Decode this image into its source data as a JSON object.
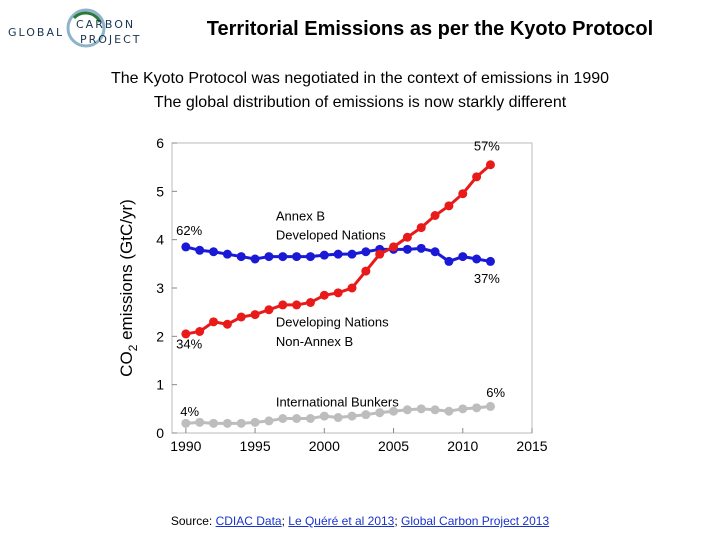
{
  "header": {
    "logo": {
      "line1": "GLOBAL",
      "line2": "CARBON",
      "line3": "PROJECT"
    },
    "title": "Territorial Emissions as per the Kyoto Protocol",
    "subtitle_1": "The Kyoto Protocol was negotiated in the context of emissions in 1990",
    "subtitle_2": "The global distribution of emissions is now starkly different"
  },
  "footer": {
    "prefix": "Source: ",
    "link1": "CDIAC Data",
    "sep1": "; ",
    "link2": "Le Quéré et al 2013",
    "sep2": "; ",
    "link3": "Global Carbon Project 2013"
  },
  "chart_data": {
    "type": "line",
    "title": "",
    "xlabel": "",
    "ylabel": "CO2 emissions (GtC/yr)",
    "xlim": [
      1989,
      2015
    ],
    "ylim": [
      0,
      6
    ],
    "xticks": [
      1990,
      1995,
      2000,
      2005,
      2010,
      2015
    ],
    "yticks": [
      0,
      1,
      2,
      3,
      4,
      5,
      6
    ],
    "grid": false,
    "x": [
      1990,
      1991,
      1992,
      1993,
      1994,
      1995,
      1996,
      1997,
      1998,
      1999,
      2000,
      2001,
      2002,
      2003,
      2004,
      2005,
      2006,
      2007,
      2008,
      2009,
      2010,
      2011,
      2012
    ],
    "series": [
      {
        "name": "Annex B Developed Nations",
        "color": "#1a1ad6",
        "values": [
          3.85,
          3.78,
          3.75,
          3.7,
          3.65,
          3.6,
          3.65,
          3.65,
          3.65,
          3.65,
          3.68,
          3.7,
          3.7,
          3.75,
          3.8,
          3.8,
          3.8,
          3.82,
          3.75,
          3.55,
          3.65,
          3.6,
          3.55
        ]
      },
      {
        "name": "Developing Nations Non-Annex B",
        "color": "#e81a1a",
        "values": [
          2.05,
          2.1,
          2.3,
          2.25,
          2.4,
          2.45,
          2.55,
          2.65,
          2.65,
          2.7,
          2.85,
          2.9,
          3.0,
          3.35,
          3.7,
          3.85,
          4.05,
          4.25,
          4.5,
          4.7,
          4.95,
          5.3,
          5.55
        ]
      },
      {
        "name": "International Bunkers",
        "color": "#bdbdbd",
        "values": [
          0.2,
          0.22,
          0.2,
          0.2,
          0.2,
          0.22,
          0.25,
          0.3,
          0.3,
          0.3,
          0.35,
          0.32,
          0.35,
          0.38,
          0.42,
          0.45,
          0.48,
          0.5,
          0.48,
          0.45,
          0.5,
          0.52,
          0.55
        ]
      }
    ],
    "annotations": [
      {
        "text": "Annex B",
        "x": 1996.5,
        "y": 4.4
      },
      {
        "text": "Developed Nations",
        "x": 1996.5,
        "y": 4.0
      },
      {
        "text": "Developing Nations",
        "x": 1996.5,
        "y": 2.2
      },
      {
        "text": "Non-Annex B",
        "x": 1996.5,
        "y": 1.8
      },
      {
        "text": "International Bunkers",
        "x": 1996.5,
        "y": 0.55
      },
      {
        "text": "62%",
        "x": 1989.3,
        "y": 4.1
      },
      {
        "text": "34%",
        "x": 1989.3,
        "y": 1.75
      },
      {
        "text": "4%",
        "x": 1989.6,
        "y": 0.35
      },
      {
        "text": "57%",
        "x": 2010.8,
        "y": 5.85
      },
      {
        "text": "37%",
        "x": 2010.8,
        "y": 3.1
      },
      {
        "text": "6%",
        "x": 2011.7,
        "y": 0.75
      }
    ]
  }
}
